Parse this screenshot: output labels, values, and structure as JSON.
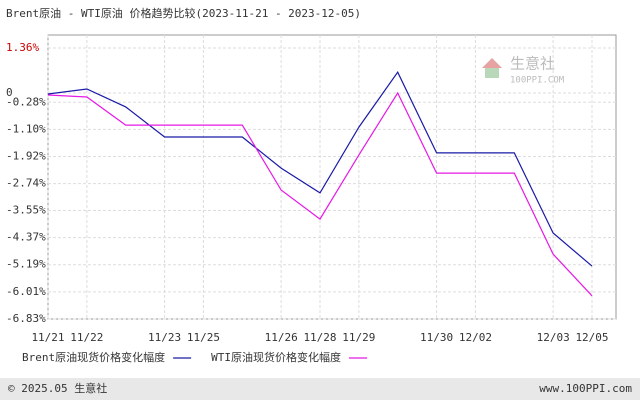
{
  "chart_data": {
    "type": "line",
    "title": "Brent原油 - WTI原油 价格趋势比较(2023-11-21 - 2023-12-05)",
    "categories": [
      "11/21",
      "11/22",
      null,
      "11/23",
      "11/25",
      null,
      "11/26",
      "11/28",
      "11/29",
      null,
      "11/30",
      "12/02",
      null,
      "12/03",
      "12/05"
    ],
    "series": [
      {
        "name": "Brent原油现货价格变化幅度",
        "color": "#1a1aa6",
        "values": [
          -0.03,
          0.12,
          -0.42,
          -1.33,
          -1.33,
          -1.33,
          -2.27,
          -3.02,
          -1.03,
          0.63,
          -1.81,
          -1.81,
          -1.81,
          -4.23,
          -5.23
        ]
      },
      {
        "name": "WTI原油现货价格变化幅度",
        "color": "#e619e6",
        "values": [
          -0.06,
          -0.12,
          -0.97,
          -0.97,
          -0.97,
          -0.97,
          -2.93,
          -3.81,
          -1.87,
          0.0,
          -2.42,
          -2.42,
          -2.42,
          -4.87,
          -6.13
        ]
      }
    ],
    "ylim": [
      -6.83,
      1.36
    ],
    "yticks": [
      {
        "value": 1.36,
        "label": "1.36%"
      },
      0,
      {
        "value": -0.28,
        "label": "-0.28%"
      },
      {
        "value": -1.1,
        "label": "-1.10%"
      },
      {
        "value": -1.92,
        "label": "-1.92%"
      },
      {
        "value": -2.74,
        "label": "-2.74%"
      },
      {
        "value": -3.55,
        "label": "-3.55%"
      },
      {
        "value": -4.37,
        "label": "-4.37%"
      },
      {
        "value": -5.19,
        "label": "-5.19%"
      },
      {
        "value": -6.01,
        "label": "-6.01%"
      },
      {
        "value": -6.83,
        "label": "-6.83%"
      }
    ],
    "grid": true,
    "watermark": "生意社",
    "watermark_sub": "100PPI.COM",
    "footer_left": "© 2025.05 生意社",
    "footer_right": "www.100PPI.com"
  }
}
